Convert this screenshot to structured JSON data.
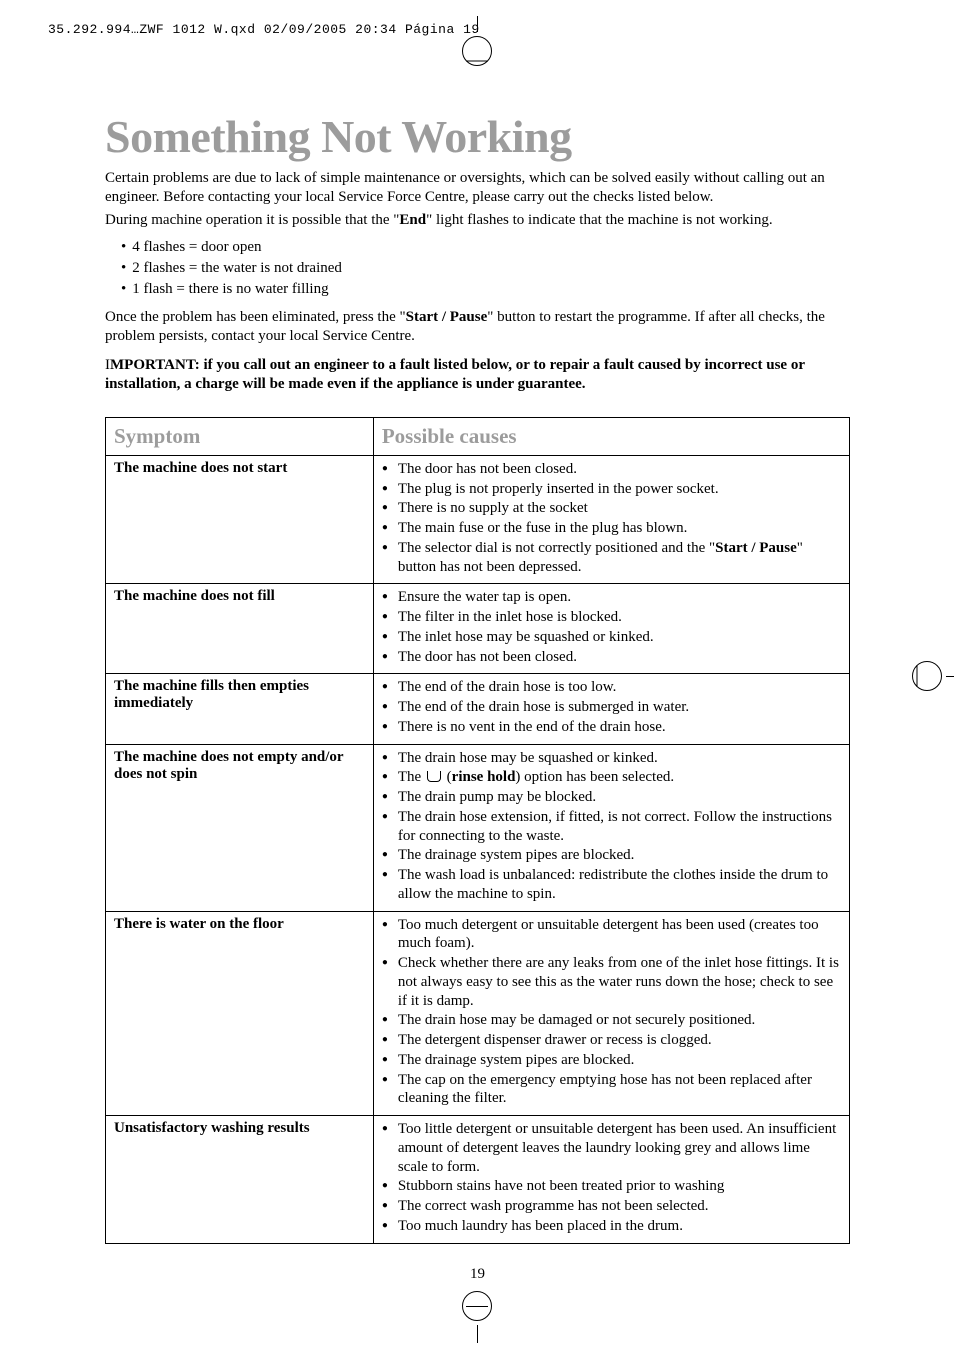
{
  "meta": {
    "header_line": "35.292.994…ZWF 1012 W.qxd  02/09/2005  20:34  Página 19"
  },
  "title": "Something Not Working",
  "intro": {
    "p1": "Certain problems are due to lack of simple maintenance or oversights, which can be solved easily without calling out an engineer. Before contacting your local Service Force Centre, please carry out the checks listed below.",
    "p2_pre": "During machine operation it is possible that the \"",
    "p2_bold": "End",
    "p2_post": "\" light flashes to indicate that the machine is not working."
  },
  "flashes": [
    "4 flashes = door open",
    "2 flashes = the water is not drained",
    "1 flash = there is no water filling"
  ],
  "restart": {
    "pre": "Once the problem has been eliminated, press the \"",
    "bold": "Start / Pause",
    "post": "\" button to restart the programme. If after all checks, the problem persists, contact your local Service Centre."
  },
  "important": {
    "pre": "I",
    "bold": "MPORTANT: if you call out an engineer to a fault listed below, or to repair a fault caused by incorrect use or installation, a charge will be made even if the appliance is under guarantee."
  },
  "table": {
    "header_symptom": "Symptom",
    "header_causes": "Possible causes",
    "rows": [
      {
        "symptom": "The machine does not start",
        "causes_plain": [
          "The door has not been closed.",
          "The plug is not properly inserted in the power socket.",
          "There is no supply at the socket",
          "The main fuse or the fuse in the plug has blown."
        ],
        "cause_selector_pre": "The selector dial is not correctly positioned and the \"",
        "cause_selector_bold": "Start / Pause",
        "cause_selector_post": "\" button has not been depressed."
      },
      {
        "symptom": "The machine does not fill",
        "causes_plain": [
          "Ensure the water tap is open.",
          "The filter in the inlet hose is blocked.",
          "The inlet hose may be squashed or kinked.",
          "The door has not been closed."
        ]
      },
      {
        "symptom": "The machine fills then empties immediately",
        "causes_plain": [
          "The end of the drain hose is too low.",
          "The end of the drain hose is submerged in water.",
          "There is no vent in the end of the drain hose."
        ]
      },
      {
        "symptom": "The machine does not empty and/or does not spin",
        "causes_plain_a": [
          "The drain hose may be squashed or kinked."
        ],
        "rinse_pre": "The ",
        "rinse_bold": "rinse hold",
        "rinse_post": ") option has been selected.",
        "causes_plain_b": [
          "The drain pump  may be blocked.",
          "The drain hose extension, if fitted, is not correct. Follow the instructions for connecting to the waste.",
          "The drainage system pipes are blocked.",
          "The wash load is unbalanced: redistribute the clothes inside the drum to allow the machine to spin."
        ]
      },
      {
        "symptom": "There is water on the floor",
        "causes_plain": [
          "Too much detergent or unsuitable detergent has been used (creates too much foam).",
          "Check whether there are any leaks from one of the inlet hose fittings. It is not always easy to see this as the water runs down the hose; check to see if it is damp.",
          "The drain hose may be damaged or not securely positioned.",
          "The detergent dispenser drawer or recess is clogged.",
          "The drainage system pipes are blocked.",
          "The cap on the emergency emptying hose has not been replaced after cleaning the filter."
        ]
      },
      {
        "symptom": "Unsatisfactory washing results",
        "causes_plain": [
          "Too little detergent or unsuitable detergent has been used. An insufficient amount of detergent leaves the laundry looking grey and allows lime scale to form.",
          "Stubborn stains have not been treated prior to washing",
          "The correct wash programme has not been selected.",
          "Too much laundry has been placed in the drum."
        ]
      }
    ]
  },
  "page_number": "19"
}
